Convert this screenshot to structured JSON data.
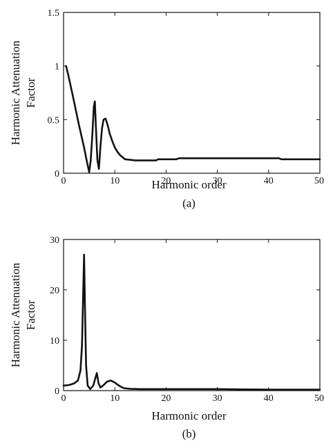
{
  "chart_data": [
    {
      "type": "line",
      "panel_label": "(a)",
      "xlabel": "Harmonic order",
      "ylabel_lines": [
        "Harmonic Attenuation",
        "Factor"
      ],
      "xlim": [
        0,
        50
      ],
      "ylim": [
        0,
        1.5
      ],
      "xticks": [
        0,
        10,
        20,
        30,
        40,
        50
      ],
      "yticks": [
        0,
        0.5,
        1,
        1.5
      ],
      "xtick_labels": [
        "0",
        "10",
        "20",
        "30",
        "40",
        "50"
      ],
      "ytick_labels": [
        "0",
        "0.5",
        "1",
        "1.5"
      ],
      "grid": false,
      "line_color": "#111111",
      "series": [
        {
          "x": [
            0.5,
            1,
            2,
            3,
            4,
            4.5,
            5,
            5.3,
            5.6,
            5.9,
            6.1,
            6.3,
            6.6,
            6.9,
            7.2,
            7.5,
            7.8,
            8.2,
            8.6,
            9,
            9.5,
            10,
            10.5,
            11,
            11.5,
            12,
            13,
            14,
            16,
            18,
            18.5,
            22,
            22.5,
            30,
            40,
            42,
            42.5,
            50
          ],
          "y": [
            1.0,
            0.9,
            0.68,
            0.45,
            0.24,
            0.12,
            0.01,
            0.12,
            0.35,
            0.62,
            0.67,
            0.45,
            0.12,
            0.04,
            0.25,
            0.42,
            0.5,
            0.51,
            0.45,
            0.37,
            0.3,
            0.24,
            0.2,
            0.17,
            0.15,
            0.13,
            0.125,
            0.12,
            0.12,
            0.12,
            0.13,
            0.13,
            0.14,
            0.14,
            0.14,
            0.14,
            0.13,
            0.13
          ]
        }
      ]
    },
    {
      "type": "line",
      "panel_label": "(b)",
      "xlabel": "Harmonic order",
      "ylabel_lines": [
        "Harmonic Attenuation",
        "Factor"
      ],
      "xlim": [
        0,
        50
      ],
      "ylim": [
        0,
        30
      ],
      "xticks": [
        0,
        10,
        20,
        30,
        40,
        50
      ],
      "yticks": [
        0,
        10,
        20,
        30
      ],
      "xtick_labels": [
        "0",
        "10",
        "20",
        "30",
        "40",
        "50"
      ],
      "ytick_labels": [
        "0",
        "10",
        "20",
        "30"
      ],
      "grid": false,
      "line_color": "#111111",
      "series": [
        {
          "x": [
            0,
            1,
            2,
            2.8,
            3.3,
            3.6,
            3.8,
            4.0,
            4.2,
            4.4,
            4.7,
            5.2,
            5.8,
            6.2,
            6.5,
            6.8,
            7.2,
            7.8,
            8.5,
            9.2,
            10,
            10.8,
            11.5,
            12,
            13,
            15,
            20,
            30,
            34,
            40,
            50
          ],
          "y": [
            1.0,
            1.1,
            1.4,
            2.0,
            4.0,
            9.0,
            18.0,
            27.0,
            15.0,
            5.0,
            1.0,
            0.3,
            1.0,
            2.5,
            3.5,
            1.5,
            0.6,
            1.1,
            1.8,
            2.0,
            1.6,
            1.0,
            0.6,
            0.45,
            0.35,
            0.3,
            0.3,
            0.3,
            0.25,
            0.2,
            0.2
          ]
        }
      ]
    }
  ]
}
